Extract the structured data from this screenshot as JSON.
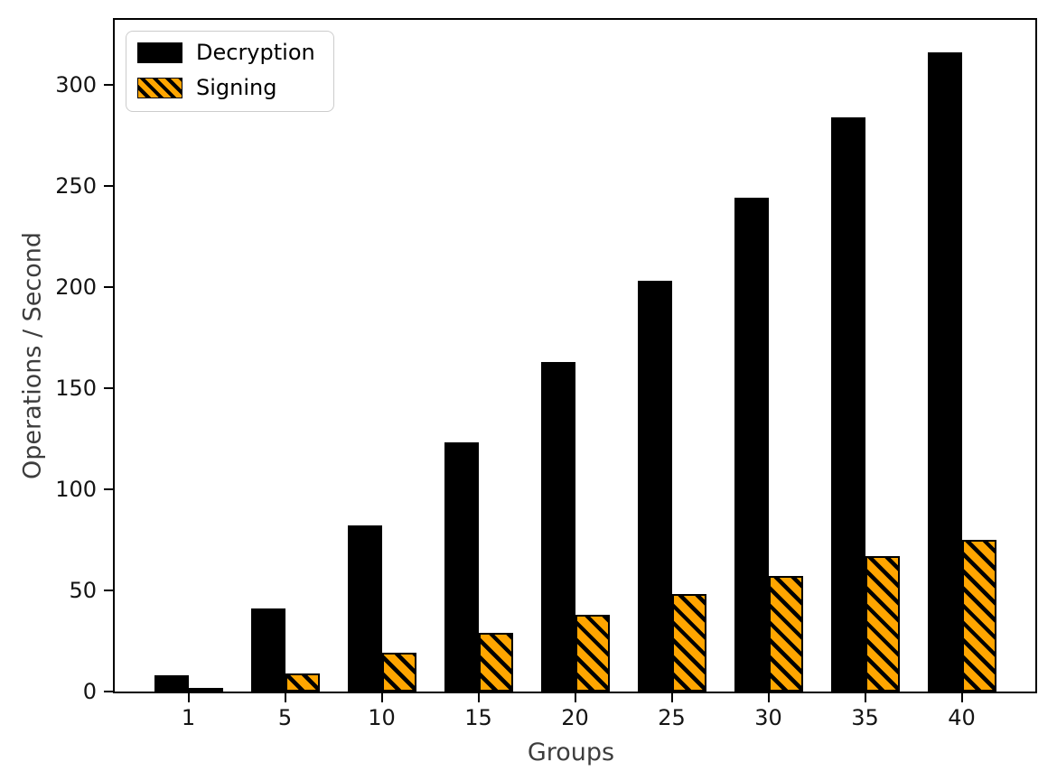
{
  "chart_data": {
    "type": "bar",
    "title": "",
    "xlabel": "Groups",
    "ylabel": "Operations / Second",
    "categories": [
      "1",
      "5",
      "10",
      "15",
      "20",
      "25",
      "30",
      "35",
      "40"
    ],
    "series": [
      {
        "name": "Decryption",
        "color": "#000000",
        "hatch": "none",
        "values": [
          8,
          41,
          82,
          123,
          163,
          203,
          244,
          284,
          316
        ]
      },
      {
        "name": "Signing",
        "color": "#FFA500",
        "hatch": "diagonal-forward",
        "values": [
          2,
          9,
          19,
          29,
          38,
          48,
          57,
          67,
          75
        ]
      }
    ],
    "yticks": [
      0,
      50,
      100,
      150,
      200,
      250,
      300
    ],
    "ylim": [
      0,
      332
    ],
    "xlim_categorical": true,
    "grid": false,
    "legend_position": "upper-left",
    "bar_edge_color": "#000000",
    "axes_frame": true
  }
}
